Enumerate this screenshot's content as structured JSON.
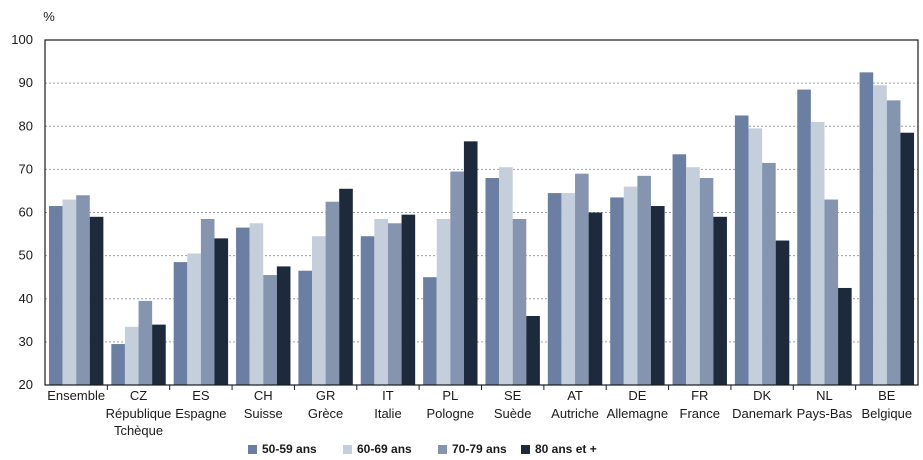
{
  "chart_data": {
    "type": "bar",
    "unit_label": "%",
    "ylim": [
      20,
      100
    ],
    "yticks": [
      20,
      30,
      40,
      50,
      60,
      70,
      80,
      90,
      100
    ],
    "grid": true,
    "legend_position": "bottom",
    "categories": [
      {
        "code": "Ensemble",
        "name": ""
      },
      {
        "code": "CZ",
        "name": "République Tchèque"
      },
      {
        "code": "ES",
        "name": "Espagne"
      },
      {
        "code": "CH",
        "name": "Suisse"
      },
      {
        "code": "GR",
        "name": "Grèce"
      },
      {
        "code": "IT",
        "name": "Italie"
      },
      {
        "code": "PL",
        "name": "Pologne"
      },
      {
        "code": "SE",
        "name": "Suède"
      },
      {
        "code": "AT",
        "name": "Autriche"
      },
      {
        "code": "DE",
        "name": "Allemagne"
      },
      {
        "code": "FR",
        "name": "France"
      },
      {
        "code": "DK",
        "name": "Danemark"
      },
      {
        "code": "NL",
        "name": "Pays-Bas"
      },
      {
        "code": "BE",
        "name": "Belgique"
      }
    ],
    "series": [
      {
        "name": "50-59 ans",
        "color": "#6b7fa3",
        "values": [
          61.5,
          29.5,
          48.5,
          56.5,
          46.5,
          54.5,
          45,
          68,
          64.5,
          63.5,
          73.5,
          82.5,
          88.5,
          92.5
        ]
      },
      {
        "name": "60-69 ans",
        "color": "#c5cedb",
        "values": [
          63,
          33.5,
          50.5,
          57.5,
          54.5,
          58.5,
          58.5,
          70.5,
          64.5,
          66,
          70.5,
          79.5,
          81,
          89.5
        ]
      },
      {
        "name": "70-79 ans",
        "color": "#8595b0",
        "values": [
          64,
          39.5,
          58.5,
          45.5,
          62.5,
          57.5,
          69.5,
          58.5,
          69,
          68.5,
          68,
          71.5,
          63,
          86
        ]
      },
      {
        "name": "80 ans et +",
        "color": "#1c2a3c",
        "values": [
          59,
          34,
          54,
          47.5,
          65.5,
          59.5,
          76.5,
          36,
          60,
          61.5,
          59,
          53.5,
          42.5,
          78.5
        ]
      }
    ]
  }
}
